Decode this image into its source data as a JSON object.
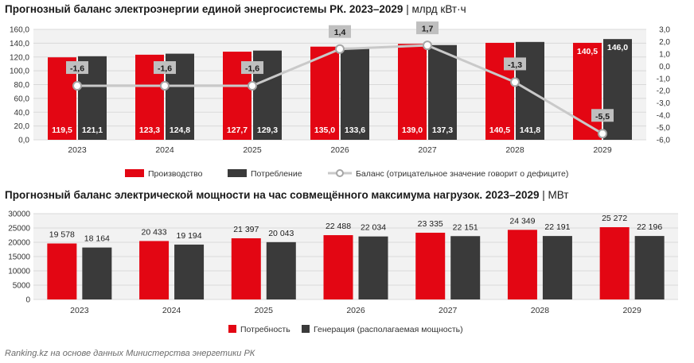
{
  "source": "Ranking.kz на основе данных Министерства энергетики РК",
  "colors": {
    "red": "#e30613",
    "dark": "#3a3a3a",
    "balance_line": "#c9c9c9",
    "grid": "#d9d9d9",
    "plot_bg": "#f2f2f2"
  },
  "chart_data": [
    {
      "type": "bar",
      "title": "Прогнозный баланс электроэнергии единой энергосистемы РК. 2023–2029",
      "unit": "| млрд кВт·ч",
      "categories": [
        "2023",
        "2024",
        "2025",
        "2026",
        "2027",
        "2028",
        "2029"
      ],
      "series": [
        {
          "name": "Производство",
          "color": "#e30613",
          "values": [
            119.5,
            123.3,
            127.7,
            135.0,
            139.0,
            140.5,
            140.5
          ],
          "labels": [
            "119,5",
            "123,3",
            "127,7",
            "135,0",
            "139,0",
            "140,5",
            "140,5"
          ]
        },
        {
          "name": "Потребление",
          "color": "#3a3a3a",
          "values": [
            121.1,
            124.8,
            129.3,
            133.6,
            137.3,
            141.8,
            146.0
          ],
          "labels": [
            "121,1",
            "124,8",
            "129,3",
            "133,6",
            "137,3",
            "141,8",
            "146,0"
          ]
        }
      ],
      "line_series": {
        "name": "Баланс (отрицательное значение говорит о дефиците)",
        "axis": "right",
        "values": [
          -1.6,
          -1.6,
          -1.6,
          1.4,
          1.7,
          -1.3,
          -5.5
        ],
        "labels": [
          "-1,6",
          "-1,6",
          "-1,6",
          "1,4",
          "1,7",
          "-1,3",
          "-5,5"
        ]
      },
      "ylim": [
        0,
        160
      ],
      "y_ticks": [
        "0,0",
        "20,0",
        "40,0",
        "60,0",
        "80,0",
        "100,0",
        "120,0",
        "140,0",
        "160,0"
      ],
      "y2lim": [
        -6,
        3
      ],
      "y2_ticks": [
        "-6,0",
        "-5,0",
        "-4,0",
        "-3,0",
        "-2,0",
        "-1,0",
        "0,0",
        "1,0",
        "2,0",
        "3,0"
      ],
      "grid": true,
      "legend_position": "bottom"
    },
    {
      "type": "bar",
      "title": "Прогнозный баланс электрической мощности на час совмещённого максимума нагрузок. 2023–2029",
      "unit": "| МВт",
      "categories": [
        "2023",
        "2024",
        "2025",
        "2026",
        "2027",
        "2028",
        "2029"
      ],
      "series": [
        {
          "name": "Потребность",
          "color": "#e30613",
          "values": [
            19578,
            20433,
            21397,
            22488,
            23335,
            24349,
            25272
          ],
          "labels": [
            "19 578",
            "20 433",
            "21 397",
            "22 488",
            "23 335",
            "24 349",
            "25 272"
          ]
        },
        {
          "name": "Генерация (располагаемая мощность)",
          "color": "#3a3a3a",
          "values": [
            18164,
            19194,
            20043,
            22034,
            22151,
            22191,
            22196
          ],
          "labels": [
            "18 164",
            "19 194",
            "20 043",
            "22 034",
            "22 151",
            "22 191",
            "22 196"
          ]
        }
      ],
      "ylim": [
        0,
        30000
      ],
      "y_ticks": [
        "0",
        "5000",
        "10000",
        "15000",
        "20000",
        "25000",
        "30000"
      ],
      "grid": true,
      "legend_position": "bottom"
    }
  ]
}
